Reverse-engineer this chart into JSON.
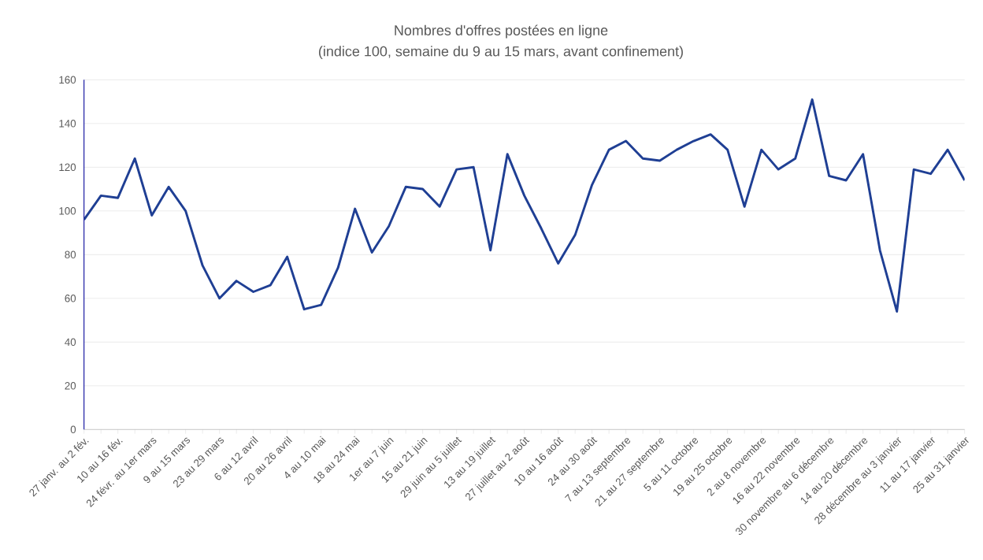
{
  "chart_data": {
    "type": "line",
    "title": "Nombres d'offres postées en ligne",
    "subtitle": "(indice 100, semaine du 9 au 15 mars, avant confinement)",
    "categories": [
      "27 janv. au 2 fév.",
      null,
      "10 au 16 fév.",
      null,
      "24 févr. au 1er mars",
      null,
      "9 au 15 mars",
      null,
      "23 au 29 mars",
      null,
      "6 au 12 avril",
      null,
      "20 au 26 avril",
      null,
      "4 au 10 mai",
      null,
      "18 au 24 mai",
      null,
      "1er au 7 juin",
      null,
      "15 au 21 juin",
      null,
      "29 juin au 5 juillet",
      null,
      "13 au 19 juillet",
      null,
      "27 juillet au 2 août",
      null,
      "10 au 16 août",
      null,
      "24 au 30 août",
      null,
      "7 au 13 septembre",
      null,
      "21 au 27 septembre",
      null,
      "5 au 11  octobre",
      null,
      "19 au 25 octobre",
      null,
      "2 au 8 novembre",
      null,
      "16 au 22 novembre",
      null,
      "30 novembre au 6 décembre",
      null,
      "14 au 20 décembre",
      null,
      "28 décembre au 3 janvier",
      null,
      "11 au 17 janvier",
      null,
      "25 au 31 janvier"
    ],
    "series": [
      {
        "color": "#1f3f94",
        "values": [
          96,
          107,
          106,
          124,
          98,
          111,
          100,
          75,
          60,
          68,
          63,
          66,
          79,
          55,
          57,
          74,
          101,
          81,
          93,
          111,
          110,
          102,
          119,
          120,
          82,
          126,
          107,
          92,
          76,
          89,
          112,
          128,
          132,
          124,
          123,
          128,
          132,
          135,
          128,
          102,
          128,
          119,
          124,
          151,
          116,
          114,
          126,
          82,
          54,
          119,
          117,
          128,
          114
        ]
      }
    ],
    "ylim": [
      0,
      160
    ],
    "yticks": [
      0,
      20,
      40,
      60,
      80,
      100,
      120,
      140,
      160
    ],
    "grid": "y",
    "marker": "none",
    "line_style": "solid"
  }
}
